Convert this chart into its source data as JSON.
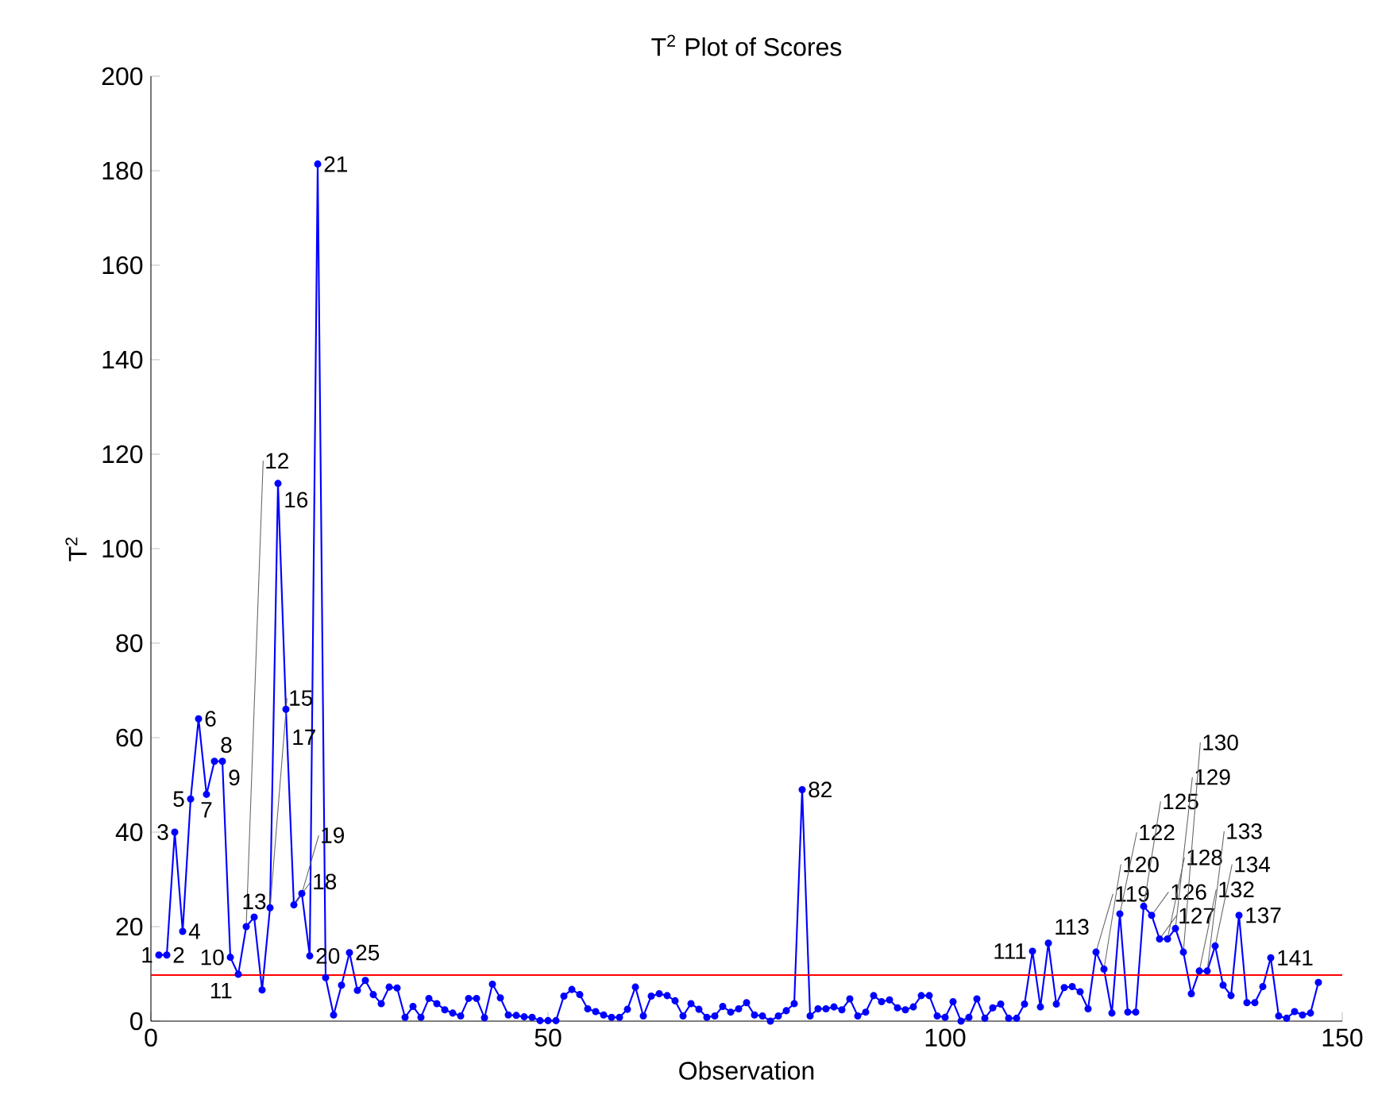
{
  "chart_data": {
    "type": "line",
    "title": "T$^{2}$ Plot of Scores",
    "xlabel": "Observation",
    "ylabel": "T$^{2}$",
    "xlim": [
      0,
      150
    ],
    "xticks": [
      0,
      50,
      100,
      150
    ],
    "ylim": [
      0,
      200
    ],
    "yticks": [
      0,
      20,
      40,
      60,
      80,
      100,
      120,
      140,
      160,
      180,
      200
    ],
    "grid": false,
    "marker": "circle",
    "line_style": "solid",
    "series": [
      {
        "color": "#0000ff",
        "x": [
          1,
          2,
          3,
          4,
          5,
          6,
          7,
          8,
          9,
          10,
          11,
          12,
          13,
          14,
          15,
          16,
          17,
          18,
          19,
          20,
          21,
          22,
          23,
          24,
          25,
          26,
          27,
          28,
          29,
          30,
          31,
          32,
          33,
          34,
          35,
          36,
          37,
          38,
          39,
          40,
          41,
          42,
          43,
          44,
          45,
          46,
          47,
          48,
          49,
          50,
          51,
          52,
          53,
          54,
          55,
          56,
          57,
          58,
          59,
          60,
          61,
          62,
          63,
          64,
          65,
          66,
          67,
          68,
          69,
          70,
          71,
          72,
          73,
          74,
          75,
          76,
          77,
          78,
          79,
          80,
          81,
          82,
          83,
          84,
          85,
          86,
          87,
          88,
          89,
          90,
          91,
          92,
          93,
          94,
          95,
          96,
          97,
          98,
          99,
          100,
          101,
          102,
          103,
          104,
          105,
          106,
          107,
          108,
          109,
          110,
          111,
          112,
          113,
          114,
          115,
          116,
          117,
          118,
          119,
          120,
          121,
          122,
          123,
          124,
          125,
          126,
          127,
          128,
          129,
          130,
          131,
          132,
          133,
          134,
          135,
          136,
          137,
          138,
          139,
          140,
          141,
          142,
          143,
          144,
          145,
          146,
          147
        ],
        "values": [
          14,
          14,
          40,
          19,
          47,
          64,
          48,
          55,
          55,
          13.5,
          9.9,
          20,
          22,
          6.6,
          24,
          113.8,
          66,
          24.6,
          27,
          13.8,
          181.4,
          9.2,
          1.3,
          7.6,
          14.5,
          6.5,
          8.6,
          5.6,
          3.7,
          7.2,
          7,
          0.8,
          3.1,
          0.8,
          4.8,
          3.7,
          2.4,
          1.7,
          1.1,
          4.8,
          4.8,
          0.7,
          7.8,
          4.9,
          1.3,
          1.2,
          0.9,
          0.8,
          0.1,
          0.1,
          0.1,
          5.3,
          6.7,
          5.6,
          2.6,
          2,
          1.3,
          0.8,
          0.8,
          2.5,
          7.2,
          1.1,
          5.3,
          5.8,
          5.4,
          4.3,
          1.1,
          3.7,
          2.5,
          0.8,
          1.1,
          3.1,
          1.9,
          2.6,
          3.9,
          1.3,
          1.1,
          0,
          1.1,
          2.2,
          3.7,
          49,
          1.1,
          2.6,
          2.6,
          3,
          2.4,
          4.7,
          1.1,
          1.9,
          5.4,
          4.1,
          4.5,
          2.8,
          2.4,
          3,
          5.4,
          5.4,
          1.1,
          0.8,
          4.1,
          0,
          0.8,
          4.7,
          0.6,
          2.8,
          3.6,
          0.6,
          0.6,
          3.6,
          14.8,
          3,
          16.5,
          3.6,
          7.1,
          7.3,
          6.2,
          2.6,
          14.6,
          11,
          1.7,
          22.7,
          1.9,
          1.9,
          24.3,
          22.4,
          17.4,
          17.4,
          19.6,
          14.6,
          5.8,
          10.6,
          10.6,
          15.9,
          7.6,
          5.4,
          22.4,
          3.9,
          3.9,
          7.3,
          13.4,
          1.1,
          0.6,
          2,
          1.3,
          1.7,
          8.2
        ]
      }
    ],
    "ref_lines": [
      {
        "axis": "y",
        "value": 9.75,
        "color": "#ff0000"
      }
    ],
    "annotations": [
      {
        "text": "1",
        "x": 1,
        "y": 14
      },
      {
        "text": "2",
        "x": 2,
        "y": 14
      },
      {
        "text": "3",
        "x": 3,
        "y": 40
      },
      {
        "text": "4",
        "x": 4,
        "y": 19
      },
      {
        "text": "5",
        "x": 5,
        "y": 47
      },
      {
        "text": "6",
        "x": 6,
        "y": 64
      },
      {
        "text": "7",
        "x": 7,
        "y": 48
      },
      {
        "text": "8",
        "x": 8,
        "y": 55
      },
      {
        "text": "9",
        "x": 9,
        "y": 55
      },
      {
        "text": "10",
        "x": 10,
        "y": 13.5
      },
      {
        "text": "11",
        "x": 11,
        "y": 9.9
      },
      {
        "text": "12",
        "x": 12,
        "y": 20
      },
      {
        "text": "13",
        "x": 13,
        "y": 22
      },
      {
        "text": "15",
        "x": 15,
        "y": 24
      },
      {
        "text": "16",
        "x": 16,
        "y": 113.8
      },
      {
        "text": "17",
        "x": 17,
        "y": 66
      },
      {
        "text": "18",
        "x": 18,
        "y": 24.6
      },
      {
        "text": "19",
        "x": 19,
        "y": 27
      },
      {
        "text": "20",
        "x": 20,
        "y": 13.8
      },
      {
        "text": "21",
        "x": 21,
        "y": 181.4
      },
      {
        "text": "25",
        "x": 25,
        "y": 14.5
      },
      {
        "text": "82",
        "x": 82,
        "y": 49
      },
      {
        "text": "111",
        "x": 111,
        "y": 14.8
      },
      {
        "text": "113",
        "x": 113,
        "y": 16.5
      },
      {
        "text": "119",
        "x": 119,
        "y": 14.6
      },
      {
        "text": "120",
        "x": 120,
        "y": 11
      },
      {
        "text": "122",
        "x": 122,
        "y": 22.7
      },
      {
        "text": "125",
        "x": 125,
        "y": 24.3
      },
      {
        "text": "126",
        "x": 126,
        "y": 22.4
      },
      {
        "text": "127",
        "x": 127,
        "y": 17.4
      },
      {
        "text": "128",
        "x": 128,
        "y": 17.4
      },
      {
        "text": "129",
        "x": 129,
        "y": 19.6
      },
      {
        "text": "130",
        "x": 130,
        "y": 14.6
      },
      {
        "text": "132",
        "x": 132,
        "y": 10.6
      },
      {
        "text": "133",
        "x": 133,
        "y": 10.6
      },
      {
        "text": "134",
        "x": 134,
        "y": 15.9
      },
      {
        "text": "137",
        "x": 137,
        "y": 22.4
      },
      {
        "text": "141",
        "x": 141,
        "y": 13.4
      }
    ]
  }
}
